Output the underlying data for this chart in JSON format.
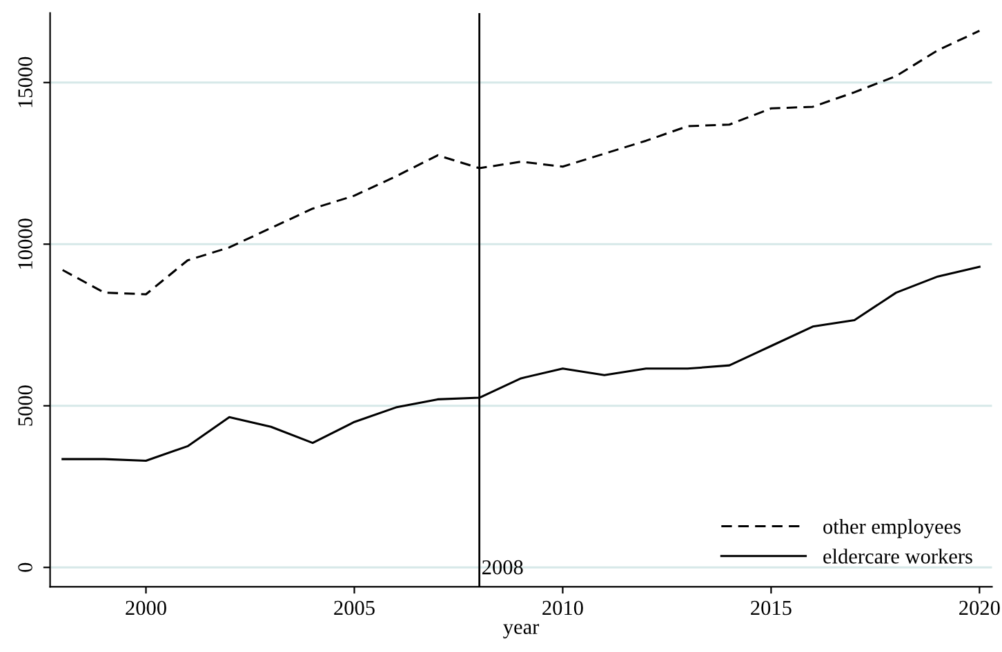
{
  "chart_data": {
    "type": "line",
    "xlabel": "year",
    "x": [
      1998,
      1999,
      2000,
      2001,
      2002,
      2003,
      2004,
      2005,
      2006,
      2007,
      2008,
      2009,
      2010,
      2011,
      2012,
      2013,
      2014,
      2015,
      2016,
      2017,
      2018,
      2019,
      2020
    ],
    "series": [
      {
        "name": "other employees",
        "color": "#000000",
        "line_style": "dashed",
        "values": [
          9200,
          8500,
          8450,
          9500,
          9900,
          10500,
          11100,
          11500,
          12100,
          12750,
          12350,
          12550,
          12400,
          12800,
          13200,
          13650,
          13700,
          14200,
          14250,
          14700,
          15200,
          16000,
          16600
        ]
      },
      {
        "name": "eldercare workers",
        "color": "#000000",
        "line_style": "solid",
        "values": [
          3350,
          3350,
          3300,
          3750,
          4650,
          4350,
          3850,
          4500,
          4950,
          5200,
          5250,
          5850,
          6150,
          5950,
          6150,
          6150,
          6250,
          6850,
          7450,
          7650,
          8500,
          9000,
          9300
        ]
      }
    ],
    "xlim": [
      1997.7,
      2020.3
    ],
    "xticks": [
      2000,
      2005,
      2010,
      2015,
      2020
    ],
    "ylim": [
      -600,
      17150
    ],
    "yticks": [
      0,
      5000,
      10000,
      15000
    ],
    "grid": "y",
    "legend": "bottom right",
    "marker": "none",
    "ref_lines": [
      {
        "axis": "x",
        "value": 2008,
        "label": "2008",
        "color": "#000000"
      }
    ]
  }
}
